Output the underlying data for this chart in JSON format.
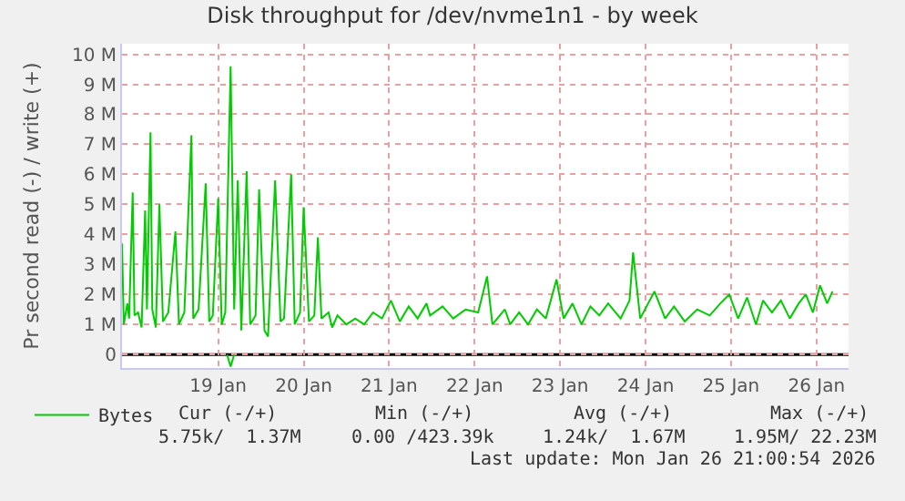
{
  "chart_data": {
    "type": "line",
    "title": "Disk throughput for /dev/nvme1n1 - by week",
    "ylabel": "Pr second read (-) / write (+)",
    "xlim": [
      "2026-01-18T09:00",
      "2026-01-26T21:00"
    ],
    "xticks": [
      {
        "value": "2026-01-19T12:00",
        "label": "19 Jan"
      },
      {
        "value": "2026-01-20T12:00",
        "label": "20 Jan"
      },
      {
        "value": "2026-01-21T12:00",
        "label": "21 Jan"
      },
      {
        "value": "2026-01-22T12:00",
        "label": "22 Jan"
      },
      {
        "value": "2026-01-23T12:00",
        "label": "23 Jan"
      },
      {
        "value": "2026-01-24T12:00",
        "label": "24 Jan"
      },
      {
        "value": "2026-01-25T12:00",
        "label": "25 Jan"
      },
      {
        "value": "2026-01-26T12:00",
        "label": "26 Jan"
      }
    ],
    "ylim": [
      -0.45,
      10.35
    ],
    "yticks": [
      0,
      {
        "value": 1,
        "label": "1 M"
      },
      {
        "value": 2,
        "label": "2 M"
      },
      {
        "value": 3,
        "label": "3 M"
      },
      {
        "value": 4,
        "label": "4 M"
      },
      {
        "value": 5,
        "label": "5 M"
      },
      {
        "value": 6,
        "label": "6 M"
      },
      {
        "value": 7,
        "label": "7 M"
      },
      {
        "value": 8,
        "label": "8 M"
      },
      {
        "value": 9,
        "label": "9 M"
      },
      {
        "value": 10,
        "label": "10 M"
      }
    ],
    "grid": true,
    "legend": "bottom left",
    "ref_lines": [
      {
        "axis": "y",
        "value": 0,
        "color": "#000000"
      }
    ],
    "series": [
      {
        "name": "Bytes",
        "color": "#00cc00",
        "x": [
          "2026-01-18T09:00",
          "2026-01-18T09:30",
          "2026-01-18T10:30",
          "2026-01-18T11:00",
          "2026-01-18T12:00",
          "2026-01-18T12:30",
          "2026-01-18T13:30",
          "2026-01-18T14:30",
          "2026-01-18T15:30",
          "2026-01-18T16:00",
          "2026-01-18T17:00",
          "2026-01-18T17:30",
          "2026-01-18T18:30",
          "2026-01-18T19:30",
          "2026-01-18T20:30",
          "2026-01-18T22:00",
          "2026-01-19T00:00",
          "2026-01-19T01:00",
          "2026-01-19T02:30",
          "2026-01-19T04:30",
          "2026-01-19T05:00",
          "2026-01-19T06:30",
          "2026-01-19T08:30",
          "2026-01-19T09:30",
          "2026-01-19T10:30",
          "2026-01-19T12:00",
          "2026-01-19T13:00",
          "2026-01-19T14:00",
          "2026-01-19T15:30",
          "2026-01-19T16:30",
          "2026-01-19T17:30",
          "2026-01-19T18:30",
          "2026-01-19T20:00",
          "2026-01-19T21:00",
          "2026-01-19T22:30",
          "2026-01-19T23:30",
          "2026-01-20T01:00",
          "2026-01-20T02:00",
          "2026-01-20T04:00",
          "2026-01-20T05:30",
          "2026-01-20T06:30",
          "2026-01-20T08:30",
          "2026-01-20T09:30",
          "2026-01-20T11:00",
          "2026-01-20T12:00",
          "2026-01-20T13:30",
          "2026-01-20T15:00",
          "2026-01-20T16:00",
          "2026-01-20T17:00",
          "2026-01-20T19:00",
          "2026-01-20T20:00",
          "2026-01-20T21:30",
          "2026-01-21T00:00",
          "2026-01-21T02:30",
          "2026-01-21T05:00",
          "2026-01-21T07:30",
          "2026-01-21T10:00",
          "2026-01-21T12:30",
          "2026-01-21T15:00",
          "2026-01-21T17:30",
          "2026-01-21T20:00",
          "2026-01-21T22:30",
          "2026-01-21T23:30",
          "2026-01-22T03:00",
          "2026-01-22T06:00",
          "2026-01-22T09:30",
          "2026-01-22T13:00",
          "2026-01-22T15:30",
          "2026-01-22T17:00",
          "2026-01-22T20:30",
          "2026-01-22T22:00",
          "2026-01-23T00:30",
          "2026-01-23T03:00",
          "2026-01-23T05:30",
          "2026-01-23T08:00",
          "2026-01-23T11:00",
          "2026-01-23T13:00",
          "2026-01-23T15:30",
          "2026-01-23T18:00",
          "2026-01-23T20:30",
          "2026-01-23T23:00",
          "2026-01-24T01:30",
          "2026-01-24T05:00",
          "2026-01-24T07:30",
          "2026-01-24T08:30",
          "2026-01-24T10:30",
          "2026-01-24T14:30",
          "2026-01-24T17:30",
          "2026-01-24T20:00",
          "2026-01-24T23:00",
          "2026-01-25T02:30",
          "2026-01-25T06:00",
          "2026-01-25T09:00",
          "2026-01-25T11:30",
          "2026-01-25T14:00",
          "2026-01-25T16:30",
          "2026-01-25T19:00",
          "2026-01-25T21:00",
          "2026-01-25T23:30",
          "2026-01-26T02:00",
          "2026-01-26T04:30",
          "2026-01-26T07:00",
          "2026-01-26T09:00",
          "2026-01-26T11:00",
          "2026-01-26T13:00",
          "2026-01-26T15:00",
          "2026-01-26T16:30"
        ],
        "values": [
          3.7,
          1.0,
          1.7,
          1.2,
          5.4,
          1.3,
          1.4,
          0.9,
          4.8,
          1.5,
          7.4,
          1.5,
          0.9,
          5.0,
          1.1,
          1.4,
          4.1,
          1.0,
          1.4,
          7.3,
          1.2,
          1.5,
          5.7,
          1.1,
          1.3,
          5.2,
          1.0,
          1.4,
          9.6,
          1.5,
          5.8,
          0.8,
          6.1,
          1.0,
          1.3,
          5.5,
          0.8,
          0.6,
          5.8,
          1.1,
          1.2,
          6.0,
          1.0,
          1.4,
          4.9,
          1.1,
          1.3,
          3.9,
          1.2,
          1.4,
          0.9,
          1.3,
          1.0,
          1.2,
          1.0,
          1.4,
          1.2,
          1.8,
          1.1,
          1.6,
          1.2,
          1.7,
          1.3,
          1.6,
          1.2,
          1.5,
          1.4,
          2.6,
          1.0,
          1.5,
          1.0,
          1.4,
          1.0,
          1.5,
          1.2,
          2.5,
          1.2,
          1.7,
          1.0,
          1.6,
          1.3,
          1.7,
          1.2,
          1.8,
          3.4,
          1.2,
          2.1,
          1.2,
          1.6,
          1.1,
          1.5,
          1.3,
          1.7,
          2.0,
          1.2,
          1.9,
          1.0,
          1.8,
          1.4,
          1.8,
          1.2,
          1.7,
          2.0,
          1.4,
          2.3,
          1.7,
          2.1
        ]
      },
      {
        "color": "#00cc00",
        "x": [
          "2026-01-19T14:30",
          "2026-01-19T15:30",
          "2026-01-19T16:30"
        ],
        "values": [
          0,
          -0.4,
          0
        ]
      }
    ],
    "annotations": [
      "Cur (-/+)",
      "Min (-/+)",
      "Avg (-/+)",
      "Max (-/+)",
      "5.75k/  1.37M",
      "0.00 /423.39k",
      "1.24k/  1.67M",
      "1.95M/ 22.23M",
      "Last update: Mon Jan 26 21:00:54 2026"
    ]
  }
}
